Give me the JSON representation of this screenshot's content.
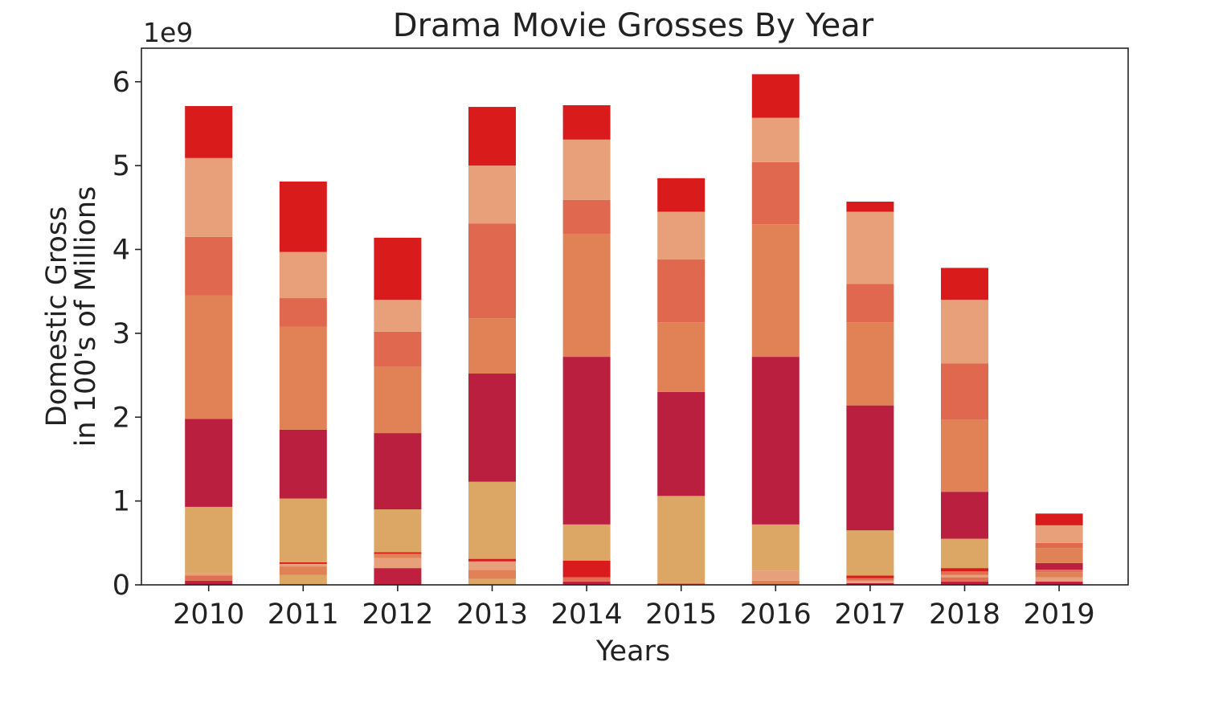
{
  "chart_data": {
    "type": "bar",
    "stacked": true,
    "title": "Drama Movie Grosses By Year",
    "xlabel": "Years",
    "ylabel_line1": "Domestic Gross",
    "ylabel_line2": "in 100's of Millions",
    "offset_label": "1e9",
    "ylim": [
      0,
      6.4
    ],
    "yticks": [
      0,
      1,
      2,
      3,
      4,
      5,
      6
    ],
    "grid": false,
    "categories": [
      "2010",
      "2011",
      "2012",
      "2013",
      "2014",
      "2015",
      "2016",
      "2017",
      "2018",
      "2019"
    ],
    "bars": [
      {
        "category": "2010",
        "segments": [
          {
            "value": 0.05,
            "color": "#bf2040"
          },
          {
            "value": 0.06,
            "color": "#e07050"
          },
          {
            "value": 0.03,
            "color": "#e8a07a"
          },
          {
            "value": 0.79,
            "color": "#dca665"
          },
          {
            "value": 1.05,
            "color": "#bb1f40"
          },
          {
            "value": 1.47,
            "color": "#e08256"
          },
          {
            "value": 0.7,
            "color": "#e0684e"
          },
          {
            "value": 0.94,
            "color": "#e8a07a"
          },
          {
            "value": 0.62,
            "color": "#d91b1b"
          }
        ]
      },
      {
        "category": "2011",
        "segments": [
          {
            "value": 0.12,
            "color": "#dca665"
          },
          {
            "value": 0.1,
            "color": "#e08256"
          },
          {
            "value": 0.03,
            "color": "#e8a07a"
          },
          {
            "value": 0.02,
            "color": "#d91b1b"
          },
          {
            "value": 0.76,
            "color": "#dca665"
          },
          {
            "value": 0.82,
            "color": "#bb1f40"
          },
          {
            "value": 1.23,
            "color": "#e08256"
          },
          {
            "value": 0.34,
            "color": "#e0684e"
          },
          {
            "value": 0.55,
            "color": "#e8a07a"
          },
          {
            "value": 0.84,
            "color": "#d91b1b"
          }
        ]
      },
      {
        "category": "2012",
        "segments": [
          {
            "value": 0.2,
            "color": "#bf2040"
          },
          {
            "value": 0.12,
            "color": "#e8a07a"
          },
          {
            "value": 0.05,
            "color": "#e08256"
          },
          {
            "value": 0.02,
            "color": "#d91b1b"
          },
          {
            "value": 0.51,
            "color": "#dca665"
          },
          {
            "value": 0.91,
            "color": "#bb1f40"
          },
          {
            "value": 0.79,
            "color": "#e08256"
          },
          {
            "value": 0.42,
            "color": "#e0684e"
          },
          {
            "value": 0.38,
            "color": "#e8a07a"
          },
          {
            "value": 0.74,
            "color": "#d91b1b"
          }
        ]
      },
      {
        "category": "2013",
        "segments": [
          {
            "value": 0.07,
            "color": "#dca665"
          },
          {
            "value": 0.11,
            "color": "#e08256"
          },
          {
            "value": 0.1,
            "color": "#e8a07a"
          },
          {
            "value": 0.03,
            "color": "#d91b1b"
          },
          {
            "value": 0.92,
            "color": "#dca665"
          },
          {
            "value": 1.29,
            "color": "#bb1f40"
          },
          {
            "value": 0.66,
            "color": "#e08256"
          },
          {
            "value": 1.13,
            "color": "#e0684e"
          },
          {
            "value": 0.69,
            "color": "#e8a07a"
          },
          {
            "value": 0.7,
            "color": "#d91b1b"
          }
        ]
      },
      {
        "category": "2014",
        "segments": [
          {
            "value": 0.04,
            "color": "#bf2040"
          },
          {
            "value": 0.05,
            "color": "#e07050"
          },
          {
            "value": 0.2,
            "color": "#d91b1b"
          },
          {
            "value": 0.43,
            "color": "#dca665"
          },
          {
            "value": 2.0,
            "color": "#bb1f40"
          },
          {
            "value": 1.46,
            "color": "#e08256"
          },
          {
            "value": 0.41,
            "color": "#e0684e"
          },
          {
            "value": 0.72,
            "color": "#e8a07a"
          },
          {
            "value": 0.41,
            "color": "#d91b1b"
          }
        ]
      },
      {
        "category": "2015",
        "segments": [
          {
            "value": 0.02,
            "color": "#e07050"
          },
          {
            "value": 1.04,
            "color": "#dca665"
          },
          {
            "value": 1.24,
            "color": "#bb1f40"
          },
          {
            "value": 0.83,
            "color": "#e08256"
          },
          {
            "value": 0.75,
            "color": "#e0684e"
          },
          {
            "value": 0.57,
            "color": "#e8a07a"
          },
          {
            "value": 0.4,
            "color": "#d91b1b"
          }
        ]
      },
      {
        "category": "2016",
        "segments": [
          {
            "value": 0.05,
            "color": "#e08256"
          },
          {
            "value": 0.12,
            "color": "#e8a07a"
          },
          {
            "value": 0.55,
            "color": "#dca665"
          },
          {
            "value": 2.0,
            "color": "#bb1f40"
          },
          {
            "value": 1.58,
            "color": "#e08256"
          },
          {
            "value": 0.74,
            "color": "#e0684e"
          },
          {
            "value": 0.53,
            "color": "#e8a07a"
          },
          {
            "value": 0.52,
            "color": "#d91b1b"
          }
        ]
      },
      {
        "category": "2017",
        "segments": [
          {
            "value": 0.02,
            "color": "#bf2040"
          },
          {
            "value": 0.03,
            "color": "#e8a07a"
          },
          {
            "value": 0.03,
            "color": "#e07050"
          },
          {
            "value": 0.03,
            "color": "#d91b1b"
          },
          {
            "value": 0.54,
            "color": "#dca665"
          },
          {
            "value": 1.49,
            "color": "#bb1f40"
          },
          {
            "value": 0.99,
            "color": "#e08256"
          },
          {
            "value": 0.46,
            "color": "#e0684e"
          },
          {
            "value": 0.86,
            "color": "#e8a07a"
          },
          {
            "value": 0.12,
            "color": "#d91b1b"
          }
        ]
      },
      {
        "category": "2018",
        "segments": [
          {
            "value": 0.04,
            "color": "#bf2040"
          },
          {
            "value": 0.05,
            "color": "#e07050"
          },
          {
            "value": 0.03,
            "color": "#e8a07a"
          },
          {
            "value": 0.04,
            "color": "#e07050"
          },
          {
            "value": 0.04,
            "color": "#d91b1b"
          },
          {
            "value": 0.35,
            "color": "#dca665"
          },
          {
            "value": 0.56,
            "color": "#bb1f40"
          },
          {
            "value": 0.86,
            "color": "#e08256"
          },
          {
            "value": 0.67,
            "color": "#e0684e"
          },
          {
            "value": 0.76,
            "color": "#e8a07a"
          },
          {
            "value": 0.38,
            "color": "#d91b1b"
          }
        ]
      },
      {
        "category": "2019",
        "segments": [
          {
            "value": 0.04,
            "color": "#bf2040"
          },
          {
            "value": 0.05,
            "color": "#e8a07a"
          },
          {
            "value": 0.06,
            "color": "#e08256"
          },
          {
            "value": 0.03,
            "color": "#e07050"
          },
          {
            "value": 0.08,
            "color": "#bb1f40"
          },
          {
            "value": 0.18,
            "color": "#e08256"
          },
          {
            "value": 0.06,
            "color": "#e0684e"
          },
          {
            "value": 0.21,
            "color": "#e8a07a"
          },
          {
            "value": 0.14,
            "color": "#d91b1b"
          }
        ]
      }
    ]
  }
}
